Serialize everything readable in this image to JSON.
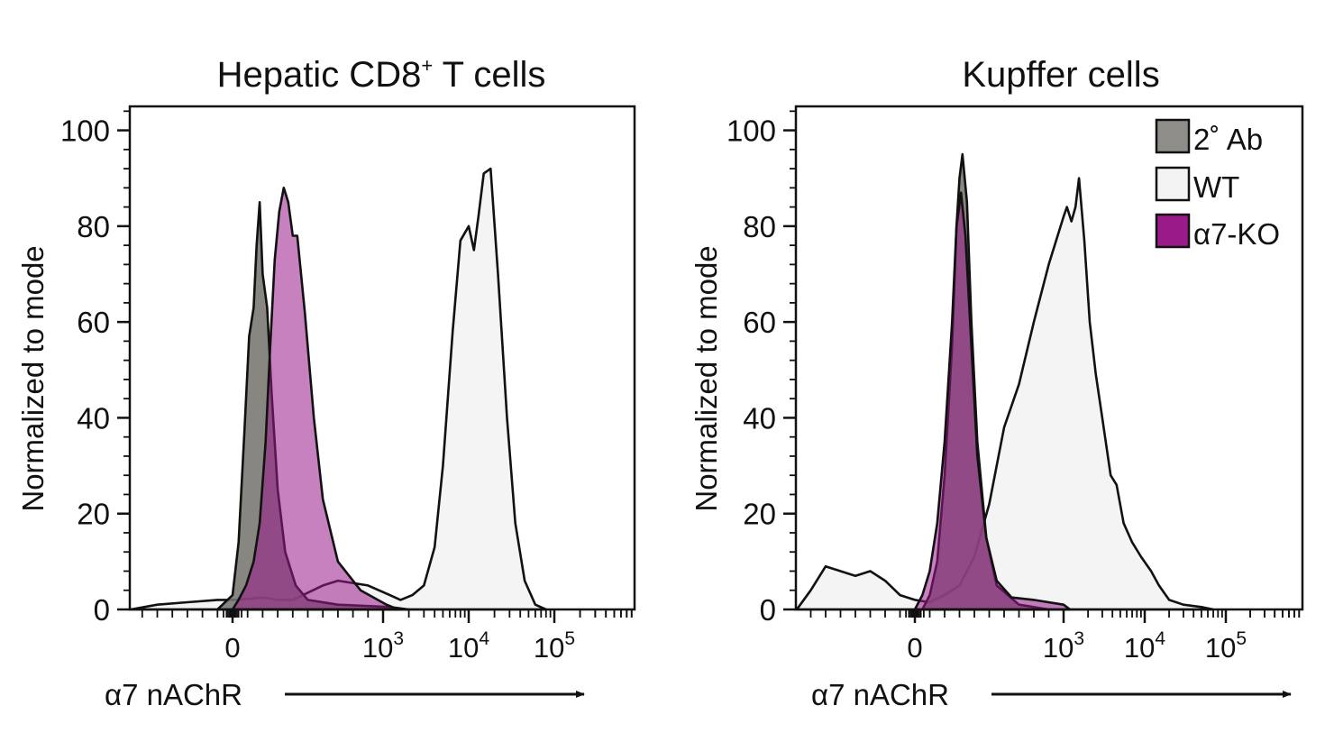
{
  "colors": {
    "secondary_ab": "#777570",
    "wt": "#f3f3f3",
    "a7ko": "#9a1a8a",
    "outline": "#111111"
  },
  "legend": {
    "items": [
      {
        "label": "2˚ Ab",
        "color": "#8f8d8a",
        "series": "secondary_ab"
      },
      {
        "label": "WT",
        "color": "#f3f3f3",
        "series": "wt"
      },
      {
        "label": "α7-KO",
        "color": "#9a1a8a",
        "series": "a7ko"
      }
    ]
  },
  "chart_data": [
    {
      "type": "area",
      "title_main": "Hepatic CD8",
      "title_sup": "+",
      "title_rest": " T cells",
      "xlabel": "α7 nAChR",
      "ylabel": "Normalized to mode",
      "ylim": [
        0,
        105
      ],
      "yticks": [
        "0",
        "20",
        "40",
        "60",
        "80",
        "100"
      ],
      "xlim": [
        -1000,
        900000
      ],
      "xaxis": "biexponential",
      "xticks": [
        {
          "value": 0,
          "base": "0",
          "exp": ""
        },
        {
          "value": 1000,
          "base": "10",
          "exp": "3"
        },
        {
          "value": 10000,
          "base": "10",
          "exp": "4"
        },
        {
          "value": 100000,
          "base": "10",
          "exp": "5"
        }
      ],
      "series": [
        {
          "name": "2˚ Ab",
          "key": "secondary_ab",
          "points": [
            [
              -100,
              0
            ],
            [
              0,
              3
            ],
            [
              40,
              14
            ],
            [
              80,
              38
            ],
            [
              110,
              57
            ],
            [
              140,
              63
            ],
            [
              160,
              76
            ],
            [
              180,
              85
            ],
            [
              200,
              70
            ],
            [
              230,
              63
            ],
            [
              260,
              45
            ],
            [
              300,
              25
            ],
            [
              350,
              12
            ],
            [
              420,
              5
            ],
            [
              500,
              2
            ],
            [
              700,
              1
            ],
            [
              1200,
              0.5
            ],
            [
              2000,
              0
            ]
          ]
        },
        {
          "name": "WT",
          "key": "wt",
          "points": [
            [
              -700,
              0
            ],
            [
              -500,
              1
            ],
            [
              -300,
              1.5
            ],
            [
              -100,
              2
            ],
            [
              0,
              2
            ],
            [
              100,
              2.2
            ],
            [
              200,
              2.5
            ],
            [
              300,
              2
            ],
            [
              400,
              2
            ],
            [
              500,
              3.5
            ],
            [
              600,
              5
            ],
            [
              700,
              6
            ],
            [
              900,
              5
            ],
            [
              1200,
              3
            ],
            [
              1600,
              2
            ],
            [
              2200,
              3
            ],
            [
              3000,
              5
            ],
            [
              4000,
              13
            ],
            [
              5000,
              30
            ],
            [
              6500,
              58
            ],
            [
              8000,
              77
            ],
            [
              10000,
              80
            ],
            [
              11500,
              75
            ],
            [
              13000,
              82
            ],
            [
              15000,
              91
            ],
            [
              18000,
              92
            ],
            [
              22000,
              70
            ],
            [
              28000,
              40
            ],
            [
              35000,
              18
            ],
            [
              45000,
              6
            ],
            [
              60000,
              1
            ],
            [
              80000,
              0
            ]
          ]
        },
        {
          "name": "α7-KO",
          "key": "a7ko",
          "points": [
            [
              0,
              0
            ],
            [
              40,
              2
            ],
            [
              90,
              5
            ],
            [
              140,
              10
            ],
            [
              180,
              18
            ],
            [
              220,
              35
            ],
            [
              250,
              55
            ],
            [
              280,
              73
            ],
            [
              310,
              83
            ],
            [
              340,
              88
            ],
            [
              370,
              85
            ],
            [
              400,
              78
            ],
            [
              430,
              78
            ],
            [
              480,
              62
            ],
            [
              540,
              40
            ],
            [
              600,
              23
            ],
            [
              700,
              10
            ],
            [
              850,
              4
            ],
            [
              1100,
              1
            ],
            [
              1500,
              0
            ]
          ]
        }
      ]
    },
    {
      "type": "area",
      "title_main": "Kupffer cells",
      "title_sup": "",
      "title_rest": "",
      "xlabel": "α7 nAChR",
      "ylabel": "Normalized to mode",
      "ylim": [
        0,
        105
      ],
      "yticks": [
        "0",
        "20",
        "40",
        "60",
        "80",
        "100"
      ],
      "xlim": [
        -1000,
        900000
      ],
      "xaxis": "biexponential",
      "xticks": [
        {
          "value": 0,
          "base": "0",
          "exp": ""
        },
        {
          "value": 1000,
          "base": "10",
          "exp": "3"
        },
        {
          "value": 10000,
          "base": "10",
          "exp": "4"
        },
        {
          "value": 100000,
          "base": "10",
          "exp": "5"
        }
      ],
      "series": [
        {
          "name": "2˚ Ab",
          "key": "secondary_ab",
          "points": [
            [
              50,
              0
            ],
            [
              100,
              3
            ],
            [
              150,
              10
            ],
            [
              200,
              28
            ],
            [
              250,
              55
            ],
            [
              280,
              80
            ],
            [
              300,
              90
            ],
            [
              320,
              95
            ],
            [
              350,
              85
            ],
            [
              380,
              60
            ],
            [
              420,
              35
            ],
            [
              480,
              15
            ],
            [
              550,
              5
            ],
            [
              700,
              1
            ],
            [
              900,
              0
            ]
          ]
        },
        {
          "name": "WT",
          "key": "wt",
          "points": [
            [
              -800,
              0
            ],
            [
              -700,
              4
            ],
            [
              -600,
              9
            ],
            [
              -500,
              8
            ],
            [
              -400,
              7
            ],
            [
              -300,
              8
            ],
            [
              -200,
              6
            ],
            [
              -100,
              3
            ],
            [
              0,
              2
            ],
            [
              100,
              1.5
            ],
            [
              200,
              3
            ],
            [
              300,
              5
            ],
            [
              400,
              11
            ],
            [
              500,
              22
            ],
            [
              600,
              38
            ],
            [
              700,
              47
            ],
            [
              800,
              60
            ],
            [
              900,
              72
            ],
            [
              1000,
              82
            ],
            [
              1100,
              84
            ],
            [
              1250,
              81
            ],
            [
              1400,
              84
            ],
            [
              1550,
              90
            ],
            [
              1800,
              77
            ],
            [
              2100,
              60
            ],
            [
              2500,
              49
            ],
            [
              3000,
              40
            ],
            [
              3800,
              28
            ],
            [
              4500,
              26
            ],
            [
              5500,
              18
            ],
            [
              7000,
              14
            ],
            [
              9000,
              11
            ],
            [
              12000,
              8
            ],
            [
              15000,
              5
            ],
            [
              20000,
              2
            ],
            [
              30000,
              1
            ],
            [
              50000,
              0.5
            ],
            [
              70000,
              0
            ]
          ]
        },
        {
          "name": "α7-KO",
          "key": "a7ko",
          "points": [
            [
              0,
              0
            ],
            [
              50,
              3
            ],
            [
              100,
              8
            ],
            [
              150,
              18
            ],
            [
              200,
              35
            ],
            [
              250,
              60
            ],
            [
              280,
              80
            ],
            [
              310,
              87
            ],
            [
              340,
              78
            ],
            [
              380,
              55
            ],
            [
              420,
              32
            ],
            [
              480,
              15
            ],
            [
              550,
              6
            ],
            [
              650,
              2.5
            ],
            [
              800,
              2
            ],
            [
              1000,
              1
            ],
            [
              1200,
              0
            ]
          ]
        }
      ]
    }
  ]
}
